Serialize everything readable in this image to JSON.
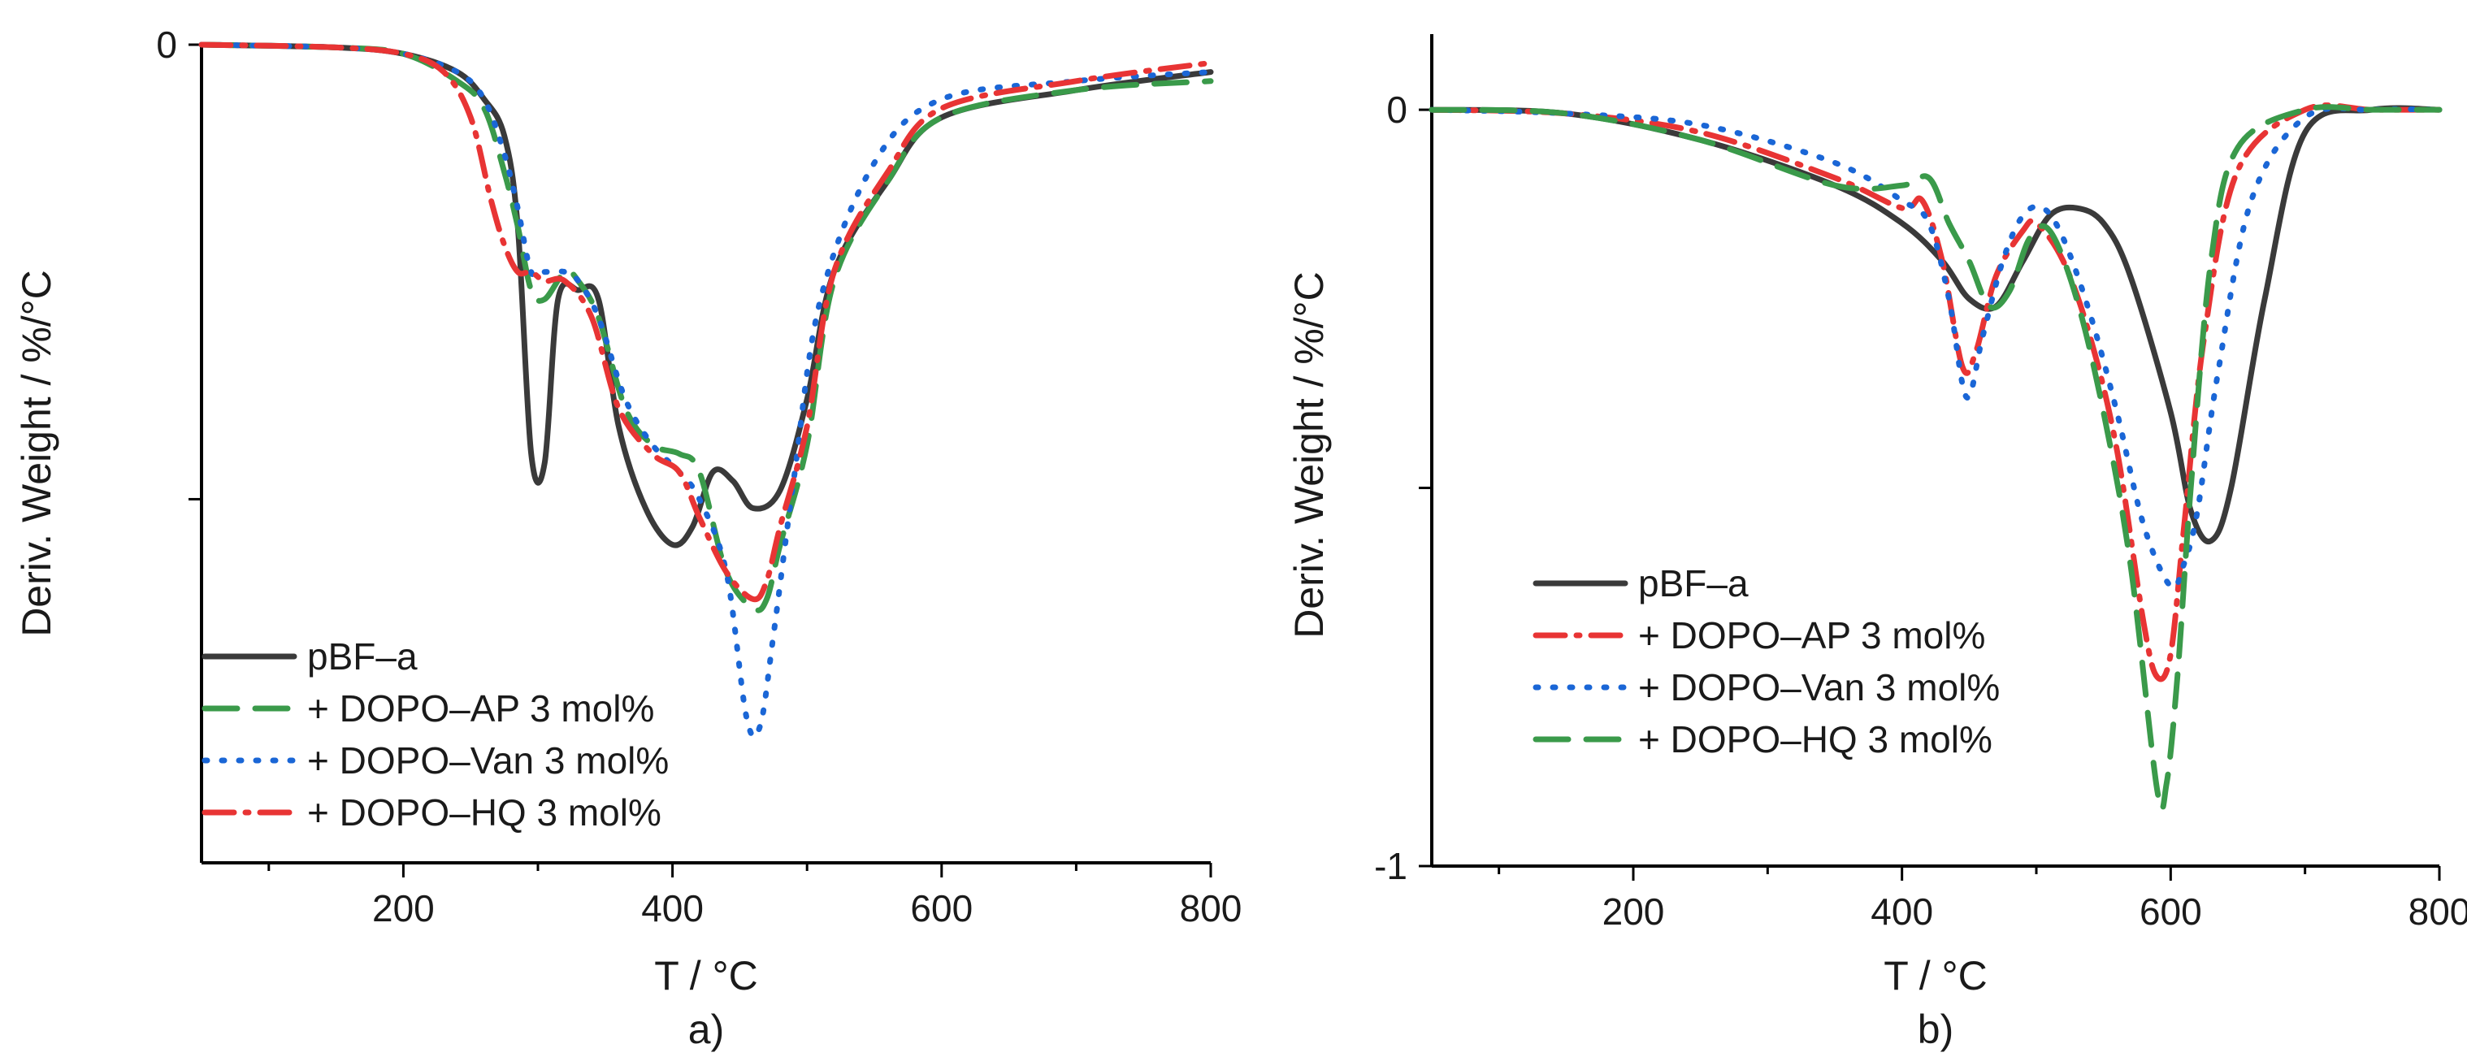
{
  "chart_data": [
    {
      "id": "panel-a",
      "type": "line",
      "panel_label": "a)",
      "xlabel": "T / °C",
      "ylabel": "Deriv. Weight / %/°C",
      "xlim": [
        50,
        800
      ],
      "ylim": [
        -0.9,
        0
      ],
      "xticks": [
        200,
        400,
        600,
        800
      ],
      "xticks_minor": [
        100,
        300,
        500,
        700
      ],
      "yticks": [
        {
          "value": 0,
          "label": "0"
        },
        {
          "value": -0.5,
          "label": ""
        }
      ],
      "legend_position": "bottom-left",
      "series": [
        {
          "name": "pBF–a",
          "color": "#3a3a3a",
          "dash": "solid",
          "x": [
            50,
            150,
            200,
            240,
            260,
            275,
            285,
            295,
            305,
            315,
            330,
            345,
            360,
            380,
            400,
            415,
            430,
            445,
            460,
            480,
            500,
            520,
            560,
            600,
            700,
            800
          ],
          "y": [
            0,
            -0.003,
            -0.01,
            -0.03,
            -0.06,
            -0.1,
            -0.2,
            -0.45,
            -0.46,
            -0.28,
            -0.27,
            -0.28,
            -0.42,
            -0.51,
            -0.55,
            -0.53,
            -0.47,
            -0.48,
            -0.51,
            -0.49,
            -0.39,
            -0.25,
            -0.15,
            -0.08,
            -0.05,
            -0.03
          ]
        },
        {
          "name": "+ DOPO–AP 3 mol%",
          "color": "#3a9a4a",
          "dash": "dashed",
          "x": [
            50,
            150,
            200,
            240,
            260,
            275,
            285,
            295,
            305,
            320,
            330,
            345,
            365,
            385,
            405,
            420,
            440,
            460,
            470,
            480,
            500,
            520,
            560,
            600,
            700,
            800
          ],
          "y": [
            0,
            -0.003,
            -0.01,
            -0.04,
            -0.07,
            -0.14,
            -0.2,
            -0.27,
            -0.28,
            -0.25,
            -0.26,
            -0.3,
            -0.4,
            -0.44,
            -0.45,
            -0.47,
            -0.58,
            -0.62,
            -0.61,
            -0.55,
            -0.44,
            -0.26,
            -0.15,
            -0.08,
            -0.05,
            -0.04
          ]
        },
        {
          "name": "+ DOPO–Van 3 mol%",
          "color": "#1a66d6",
          "dash": "dotted",
          "x": [
            50,
            150,
            200,
            240,
            260,
            275,
            285,
            295,
            305,
            320,
            330,
            345,
            365,
            385,
            405,
            420,
            440,
            455,
            465,
            475,
            490,
            510,
            550,
            600,
            700,
            800
          ],
          "y": [
            0,
            -0.003,
            -0.01,
            -0.03,
            -0.06,
            -0.12,
            -0.18,
            -0.25,
            -0.25,
            -0.25,
            -0.26,
            -0.3,
            -0.39,
            -0.44,
            -0.47,
            -0.5,
            -0.58,
            -0.74,
            -0.75,
            -0.65,
            -0.48,
            -0.28,
            -0.13,
            -0.06,
            -0.04,
            -0.03
          ]
        },
        {
          "name": "+ DOPO–HQ 3 mol%",
          "color": "#e83434",
          "dash": "dashdot",
          "x": [
            50,
            150,
            200,
            230,
            250,
            265,
            275,
            285,
            295,
            305,
            320,
            340,
            360,
            385,
            405,
            420,
            440,
            460,
            470,
            480,
            500,
            520,
            560,
            600,
            700,
            800
          ],
          "y": [
            0,
            -0.003,
            -0.01,
            -0.03,
            -0.08,
            -0.17,
            -0.22,
            -0.25,
            -0.25,
            -0.26,
            -0.26,
            -0.3,
            -0.4,
            -0.45,
            -0.47,
            -0.52,
            -0.58,
            -0.61,
            -0.59,
            -0.53,
            -0.42,
            -0.25,
            -0.14,
            -0.07,
            -0.04,
            -0.02
          ]
        }
      ]
    },
    {
      "id": "panel-b",
      "type": "line",
      "panel_label": "b)",
      "xlabel": "T / °C",
      "ylabel": "Deriv. Weight / %/°C",
      "xlim": [
        50,
        800
      ],
      "ylim": [
        -1,
        0.1
      ],
      "xticks": [
        200,
        400,
        600,
        800
      ],
      "xticks_minor": [
        100,
        300,
        500,
        700
      ],
      "yticks": [
        {
          "value": 0,
          "label": "0"
        },
        {
          "value": -0.5,
          "label": ""
        },
        {
          "value": -1,
          "label": "-1"
        }
      ],
      "legend_position": "bottom-left",
      "series": [
        {
          "name": "pBF–a",
          "color": "#3a3a3a",
          "dash": "solid",
          "x": [
            50,
            150,
            250,
            350,
            400,
            430,
            450,
            470,
            490,
            510,
            530,
            550,
            570,
            600,
            615,
            630,
            645,
            670,
            700,
            750,
            800
          ],
          "y": [
            0,
            -0.005,
            -0.04,
            -0.1,
            -0.15,
            -0.2,
            -0.25,
            -0.26,
            -0.2,
            -0.14,
            -0.13,
            -0.15,
            -0.22,
            -0.4,
            -0.53,
            -0.57,
            -0.5,
            -0.25,
            -0.03,
            0,
            0
          ]
        },
        {
          "name": "+ DOPO–AP 3 mol%",
          "color": "#e83434",
          "dash": "dashdot",
          "x": [
            50,
            150,
            250,
            350,
            400,
            415,
            430,
            445,
            455,
            470,
            490,
            500,
            520,
            540,
            560,
            580,
            590,
            600,
            610,
            625,
            650,
            700,
            750,
            800
          ],
          "y": [
            0,
            -0.005,
            -0.03,
            -0.09,
            -0.13,
            -0.12,
            -0.2,
            -0.34,
            -0.32,
            -0.22,
            -0.16,
            -0.15,
            -0.2,
            -0.3,
            -0.45,
            -0.68,
            -0.75,
            -0.72,
            -0.55,
            -0.3,
            -0.08,
            0,
            0,
            0
          ]
        },
        {
          "name": "+ DOPO–Van 3 mol%",
          "color": "#1a66d6",
          "dash": "dotted",
          "x": [
            50,
            150,
            250,
            350,
            400,
            420,
            435,
            448,
            460,
            475,
            490,
            505,
            520,
            540,
            560,
            580,
            600,
            610,
            620,
            635,
            660,
            700,
            750,
            800
          ],
          "y": [
            0,
            -0.005,
            -0.02,
            -0.07,
            -0.12,
            -0.15,
            -0.25,
            -0.38,
            -0.3,
            -0.2,
            -0.14,
            -0.13,
            -0.17,
            -0.27,
            -0.4,
            -0.55,
            -0.63,
            -0.6,
            -0.53,
            -0.35,
            -0.12,
            -0.01,
            0,
            0
          ]
        },
        {
          "name": "+ DOPO–HQ 3 mol%",
          "color": "#3a9a4a",
          "dash": "dashed",
          "x": [
            50,
            150,
            250,
            350,
            400,
            420,
            435,
            450,
            465,
            480,
            495,
            510,
            530,
            550,
            570,
            590,
            597,
            605,
            615,
            630,
            650,
            700,
            750,
            800
          ],
          "y": [
            0,
            -0.005,
            -0.04,
            -0.1,
            -0.1,
            -0.09,
            -0.15,
            -0.2,
            -0.26,
            -0.24,
            -0.17,
            -0.16,
            -0.25,
            -0.4,
            -0.6,
            -0.9,
            -0.89,
            -0.75,
            -0.5,
            -0.2,
            -0.05,
            0,
            0,
            0
          ]
        }
      ]
    }
  ]
}
